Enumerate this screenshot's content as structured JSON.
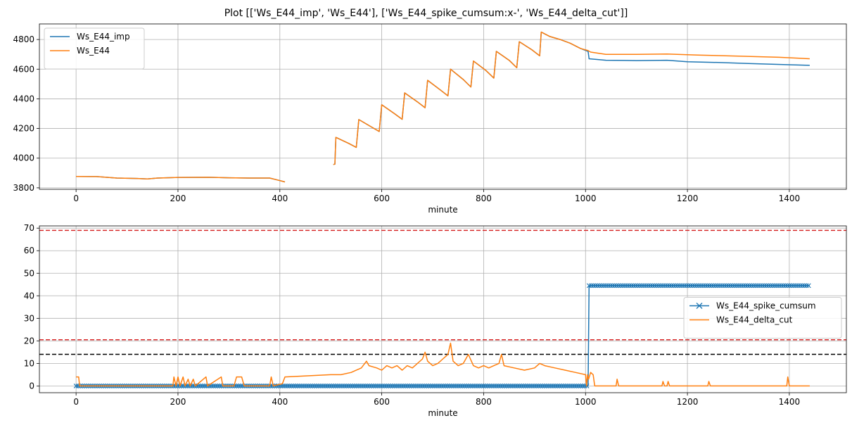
{
  "title": "Plot [['Ws_E44_imp', 'Ws_E44'], ['Ws_E44_spike_cumsum:x-', 'Ws_E44_delta_cut']]",
  "colors": {
    "blue": "#1f77b4",
    "orange": "#ff7f0e",
    "red": "#d62728",
    "black": "#000000"
  },
  "chart_data": [
    {
      "type": "line",
      "xlabel": "minute",
      "ylabel": "",
      "xlim": [
        -72,
        1512
      ],
      "ylim": [
        3790,
        4905
      ],
      "xticks": [
        0,
        200,
        400,
        600,
        800,
        1000,
        1200,
        1400
      ],
      "yticks": [
        3800,
        4000,
        4200,
        4400,
        4600,
        4800
      ],
      "grid": true,
      "legend_position": "upper left",
      "series": [
        {
          "name": "Ws_E44_imp",
          "color": "blue",
          "segments": [
            [
              [
                0,
                3877
              ],
              [
                40,
                3876
              ],
              [
                80,
                3866
              ],
              [
                120,
                3863
              ],
              [
                140,
                3860
              ],
              [
                160,
                3866
              ],
              [
                200,
                3870
              ],
              [
                260,
                3871
              ],
              [
                300,
                3868
              ],
              [
                340,
                3866
              ],
              [
                380,
                3866
              ],
              [
                395,
                3853
              ],
              [
                410,
                3840
              ]
            ],
            [
              [
                505,
                3957
              ],
              [
                508,
                3960
              ],
              [
                510,
                4140
              ],
              [
                535,
                4100
              ],
              [
                550,
                4073
              ],
              [
                555,
                4260
              ],
              [
                580,
                4210
              ],
              [
                595,
                4180
              ],
              [
                600,
                4360
              ],
              [
                625,
                4300
              ],
              [
                640,
                4262
              ],
              [
                645,
                4440
              ],
              [
                670,
                4380
              ],
              [
                685,
                4340
              ],
              [
                690,
                4525
              ],
              [
                715,
                4460
              ],
              [
                730,
                4420
              ],
              [
                735,
                4600
              ],
              [
                760,
                4530
              ],
              [
                775,
                4480
              ],
              [
                780,
                4655
              ],
              [
                805,
                4590
              ],
              [
                820,
                4540
              ],
              [
                825,
                4720
              ],
              [
                850,
                4660
              ],
              [
                865,
                4610
              ],
              [
                870,
                4785
              ],
              [
                895,
                4730
              ],
              [
                910,
                4690
              ],
              [
                913,
                4850
              ],
              [
                930,
                4820
              ],
              [
                950,
                4800
              ],
              [
                970,
                4775
              ],
              [
                990,
                4740
              ],
              [
                1005,
                4720
              ],
              [
                1007,
                4670
              ],
              [
                1040,
                4660
              ],
              [
                1100,
                4658
              ],
              [
                1160,
                4660
              ],
              [
                1200,
                4650
              ],
              [
                1260,
                4645
              ],
              [
                1320,
                4638
              ],
              [
                1400,
                4630
              ],
              [
                1440,
                4626
              ]
            ]
          ]
        },
        {
          "name": "Ws_E44",
          "color": "orange",
          "segments": [
            [
              [
                0,
                3877
              ],
              [
                40,
                3876
              ],
              [
                80,
                3866
              ],
              [
                120,
                3863
              ],
              [
                140,
                3860
              ],
              [
                160,
                3866
              ],
              [
                200,
                3870
              ],
              [
                260,
                3871
              ],
              [
                300,
                3868
              ],
              [
                340,
                3866
              ],
              [
                380,
                3866
              ],
              [
                395,
                3853
              ],
              [
                410,
                3840
              ]
            ],
            [
              [
                505,
                3957
              ],
              [
                508,
                3960
              ],
              [
                510,
                4140
              ],
              [
                535,
                4100
              ],
              [
                550,
                4073
              ],
              [
                555,
                4260
              ],
              [
                580,
                4210
              ],
              [
                595,
                4180
              ],
              [
                600,
                4360
              ],
              [
                625,
                4300
              ],
              [
                640,
                4262
              ],
              [
                645,
                4440
              ],
              [
                670,
                4380
              ],
              [
                685,
                4340
              ],
              [
                690,
                4525
              ],
              [
                715,
                4460
              ],
              [
                730,
                4420
              ],
              [
                735,
                4600
              ],
              [
                760,
                4530
              ],
              [
                775,
                4480
              ],
              [
                780,
                4655
              ],
              [
                805,
                4590
              ],
              [
                820,
                4540
              ],
              [
                825,
                4720
              ],
              [
                850,
                4660
              ],
              [
                865,
                4610
              ],
              [
                870,
                4785
              ],
              [
                895,
                4730
              ],
              [
                910,
                4690
              ],
              [
                913,
                4850
              ],
              [
                930,
                4820
              ],
              [
                950,
                4800
              ],
              [
                970,
                4775
              ],
              [
                990,
                4740
              ],
              [
                1005,
                4725
              ],
              [
                1010,
                4715
              ],
              [
                1040,
                4700
              ],
              [
                1100,
                4700
              ],
              [
                1160,
                4702
              ],
              [
                1220,
                4695
              ],
              [
                1300,
                4688
              ],
              [
                1380,
                4680
              ],
              [
                1440,
                4670
              ]
            ]
          ]
        }
      ]
    },
    {
      "type": "line",
      "xlabel": "minute",
      "ylabel": "",
      "xlim": [
        -72,
        1512
      ],
      "ylim": [
        -3,
        71
      ],
      "xticks": [
        0,
        200,
        400,
        600,
        800,
        1000,
        1200,
        1400
      ],
      "yticks": [
        0,
        10,
        20,
        30,
        40,
        50,
        60,
        70
      ],
      "grid": true,
      "legend_position": "center right",
      "hlines": [
        {
          "y": 69,
          "color": "red",
          "style": "dashed"
        },
        {
          "y": 20.5,
          "color": "red",
          "style": "dashed"
        },
        {
          "y": 14,
          "color": "black",
          "style": "dashed"
        }
      ],
      "series": [
        {
          "name": "Ws_E44_spike_cumsum",
          "color": "blue",
          "marker": "x",
          "segments": [
            [
              [
                0,
                0
              ],
              [
                1005,
                0
              ],
              [
                1007,
                44.5
              ],
              [
                1440,
                44.5
              ]
            ]
          ]
        },
        {
          "name": "Ws_E44_delta_cut",
          "color": "orange",
          "segments": [
            [
              [
                0,
                4
              ],
              [
                5,
                4
              ],
              [
                7,
                0
              ],
              [
                190,
                0
              ],
              [
                192,
                4
              ],
              [
                196,
                0
              ],
              [
                200,
                4
              ],
              [
                204,
                0
              ],
              [
                210,
                4
              ],
              [
                214,
                0
              ],
              [
                220,
                3
              ],
              [
                224,
                0
              ],
              [
                230,
                3
              ],
              [
                234,
                0
              ],
              [
                255,
                4
              ],
              [
                258,
                0
              ],
              [
                285,
                4
              ],
              [
                288,
                0
              ],
              [
                310,
                0
              ],
              [
                315,
                4
              ],
              [
                325,
                4
              ],
              [
                330,
                0
              ],
              [
                380,
                0
              ],
              [
                383,
                4
              ],
              [
                387,
                0
              ],
              [
                405,
                1
              ],
              [
                410,
                4
              ],
              [
                500,
                5
              ],
              [
                520,
                5
              ],
              [
                540,
                6
              ],
              [
                560,
                8
              ],
              [
                570,
                11
              ],
              [
                575,
                9
              ],
              [
                590,
                8
              ],
              [
                600,
                7
              ],
              [
                610,
                9
              ],
              [
                620,
                8
              ],
              [
                630,
                9
              ],
              [
                640,
                7
              ],
              [
                650,
                9
              ],
              [
                660,
                8
              ],
              [
                670,
                10
              ],
              [
                680,
                12
              ],
              [
                685,
                15
              ],
              [
                690,
                11
              ],
              [
                700,
                9
              ],
              [
                710,
                10
              ],
              [
                720,
                12
              ],
              [
                730,
                14
              ],
              [
                735,
                19
              ],
              [
                740,
                11
              ],
              [
                750,
                9
              ],
              [
                760,
                10
              ],
              [
                770,
                14
              ],
              [
                780,
                9
              ],
              [
                790,
                8
              ],
              [
                800,
                9
              ],
              [
                810,
                8
              ],
              [
                820,
                9
              ],
              [
                830,
                10
              ],
              [
                835,
                14
              ],
              [
                840,
                9
              ],
              [
                860,
                8
              ],
              [
                880,
                7
              ],
              [
                900,
                8
              ],
              [
                910,
                10
              ],
              [
                920,
                9
              ],
              [
                940,
                8
              ],
              [
                960,
                7
              ],
              [
                980,
                6
              ],
              [
                1000,
                5
              ],
              [
                1002,
                0
              ],
              [
                1004,
                5
              ],
              [
                1006,
                3
              ],
              [
                1010,
                6
              ],
              [
                1015,
                5
              ],
              [
                1018,
                0
              ],
              [
                1060,
                0
              ],
              [
                1062,
                3
              ],
              [
                1065,
                0
              ],
              [
                1150,
                0
              ],
              [
                1152,
                2
              ],
              [
                1155,
                0
              ],
              [
                1160,
                0
              ],
              [
                1162,
                2
              ],
              [
                1165,
                0
              ],
              [
                1240,
                0
              ],
              [
                1242,
                2
              ],
              [
                1245,
                0
              ],
              [
                1395,
                0
              ],
              [
                1397,
                4
              ],
              [
                1400,
                0
              ],
              [
                1440,
                0
              ]
            ]
          ]
        }
      ]
    }
  ]
}
